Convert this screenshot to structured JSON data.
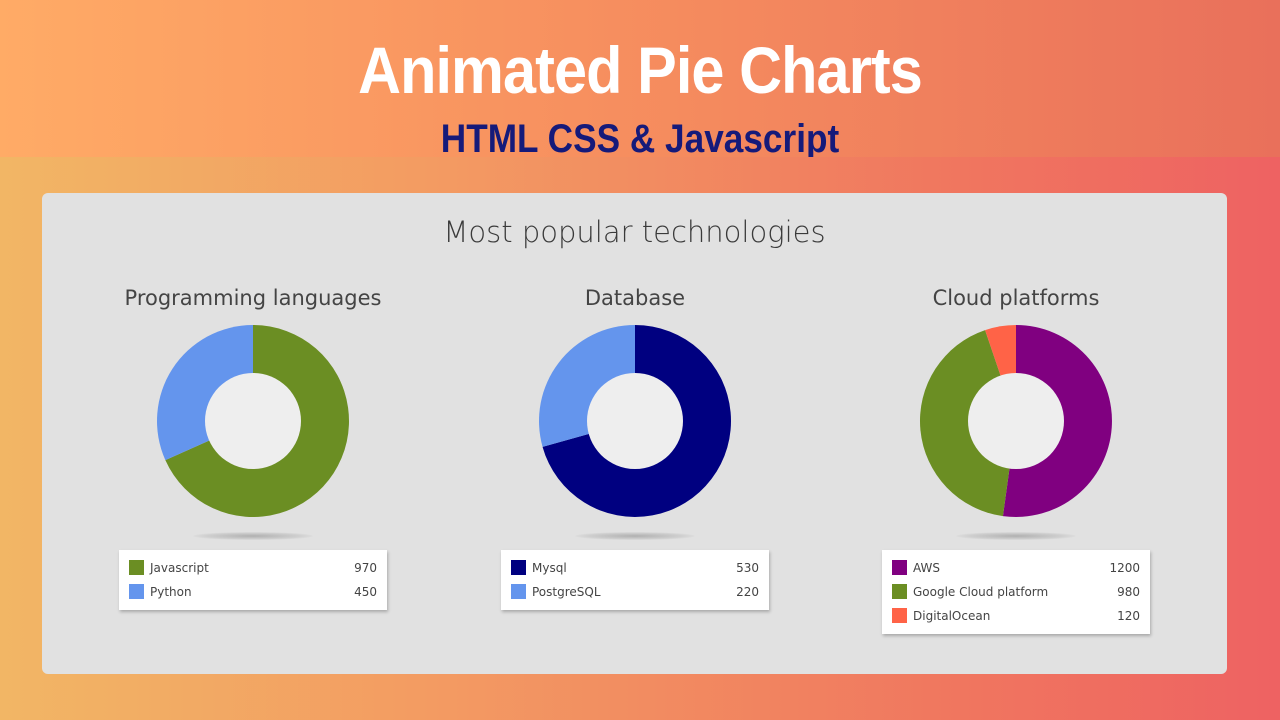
{
  "banner": {
    "title": "Animated Pie Charts",
    "subtitle": "HTML CSS & Javascript"
  },
  "panel": {
    "title": "Most popular technologies"
  },
  "colors": {
    "hole": "#eeeeee",
    "subtitle": "#151a7a"
  },
  "chart_data": [
    {
      "type": "pie",
      "title": "Programming languages",
      "categories": [
        "Javascript",
        "Python"
      ],
      "values": [
        970,
        450
      ],
      "colors": [
        "#6b8e23",
        "#6495ed"
      ],
      "legend": "below"
    },
    {
      "type": "pie",
      "title": "Database",
      "categories": [
        "Mysql",
        "PostgreSQL"
      ],
      "values": [
        530,
        220
      ],
      "colors": [
        "#000080",
        "#6495ed"
      ],
      "legend": "below"
    },
    {
      "type": "pie",
      "title": "Cloud platforms",
      "categories": [
        "AWS",
        "Google Cloud platform",
        "DigitalOcean"
      ],
      "values": [
        1200,
        980,
        120
      ],
      "colors": [
        "#800080",
        "#6b8e23",
        "#ff6347"
      ],
      "legend": "below"
    }
  ]
}
